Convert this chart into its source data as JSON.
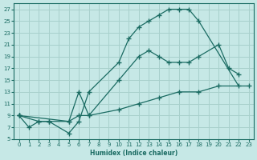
{
  "xlabel": "Humidex (Indice chaleur)",
  "background_color": "#c6e8e6",
  "grid_color": "#a8d0cc",
  "line_color": "#1a6b62",
  "xlim": [
    -0.5,
    23.5
  ],
  "ylim": [
    5,
    28
  ],
  "xticks": [
    0,
    1,
    2,
    3,
    4,
    5,
    6,
    7,
    8,
    9,
    10,
    11,
    12,
    13,
    14,
    15,
    16,
    17,
    18,
    19,
    20,
    21,
    22,
    23
  ],
  "yticks": [
    5,
    7,
    9,
    11,
    13,
    15,
    17,
    19,
    21,
    23,
    25,
    27
  ],
  "line1_x": [
    0,
    1,
    2,
    3,
    5,
    6,
    7,
    10,
    11,
    12,
    13,
    14,
    15,
    16,
    17,
    18,
    22
  ],
  "line1_y": [
    9,
    7,
    8,
    8,
    6,
    8,
    13,
    18,
    22,
    24,
    25,
    26,
    27,
    27,
    27,
    25,
    14
  ],
  "line2_x": [
    0,
    2,
    3,
    5,
    6,
    7,
    10,
    12,
    13,
    14,
    15,
    16,
    17,
    18,
    20,
    21,
    22
  ],
  "line2_y": [
    9,
    8,
    8,
    8,
    13,
    9,
    15,
    19,
    20,
    19,
    18,
    18,
    18,
    19,
    21,
    17,
    16
  ],
  "line3_x": [
    0,
    5,
    6,
    7,
    10,
    12,
    14,
    16,
    18,
    20,
    23
  ],
  "line3_y": [
    9,
    8,
    9,
    9,
    10,
    11,
    12,
    13,
    13,
    14,
    14
  ]
}
